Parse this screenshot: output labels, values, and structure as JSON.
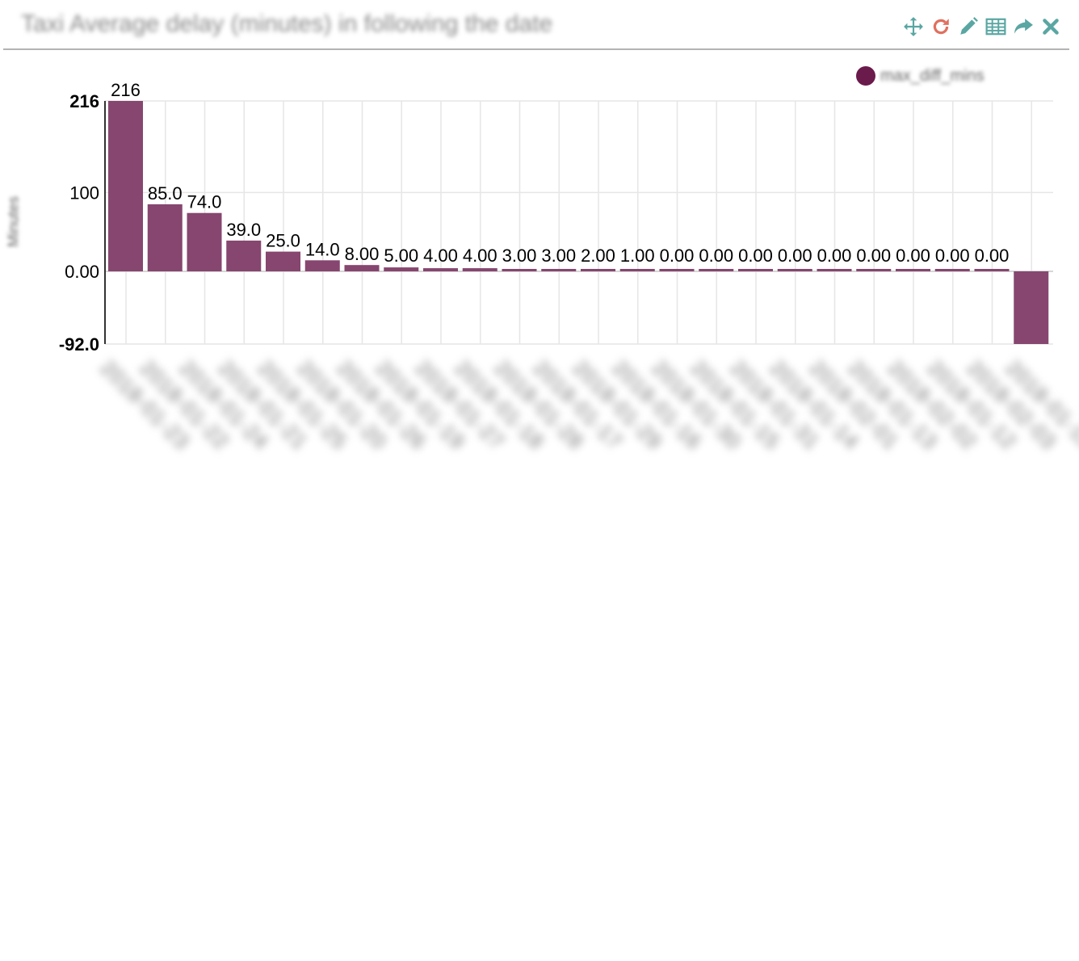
{
  "header": {
    "title": "Taxi Average delay (minutes) in following the date",
    "tools": [
      {
        "name": "move-icon",
        "color": "#5aa6a2"
      },
      {
        "name": "refresh-icon",
        "color": "#e0705f"
      },
      {
        "name": "edit-icon",
        "color": "#5aa6a2"
      },
      {
        "name": "table-icon",
        "color": "#5aa6a2"
      },
      {
        "name": "share-icon",
        "color": "#5aa6a2"
      },
      {
        "name": "close-icon",
        "color": "#5aa6a2"
      }
    ]
  },
  "colors": {
    "bar": "#86466f",
    "legend_dot": "#6b1a4c",
    "grid": "#e6e6e6",
    "axis": "#333333"
  },
  "chart_data": {
    "type": "bar",
    "title": "Taxi Average delay (minutes) in following the date",
    "ylabel": "Minutes",
    "ylim": [
      -92,
      216
    ],
    "yticks": [
      {
        "value": 216,
        "label": "216",
        "bold": true
      },
      {
        "value": 100,
        "label": "100",
        "bold": false
      },
      {
        "value": 0,
        "label": "0.00",
        "bold": false
      },
      {
        "value": -92,
        "label": "-92.0",
        "bold": true
      }
    ],
    "grid": true,
    "legend_position": "top-right",
    "categories": [
      "2018-01-23",
      "2018-01-22",
      "2018-01-24",
      "2018-01-21",
      "2018-01-25",
      "2018-01-20",
      "2018-01-26",
      "2018-01-19",
      "2018-01-27",
      "2018-01-18",
      "2018-01-28",
      "2018-01-17",
      "2018-01-29",
      "2018-01-16",
      "2018-01-30",
      "2018-01-15",
      "2018-01-31",
      "2018-01-14",
      "2018-02-01",
      "2018-01-13",
      "2018-02-02",
      "2018-01-12",
      "2018-02-03",
      "2018-01-11"
    ],
    "series": [
      {
        "name": "max_diff_mins",
        "values": [
          216,
          85.0,
          74.0,
          39.0,
          25.0,
          14.0,
          8.0,
          5.0,
          4.0,
          4.0,
          3.0,
          3.0,
          2.0,
          1.0,
          0.0,
          0.0,
          0.0,
          0.0,
          0.0,
          0.0,
          0.0,
          0.0,
          0.0,
          -92.0
        ],
        "labels": [
          "216",
          "85.0",
          "74.0",
          "39.0",
          "25.0",
          "14.0",
          "8.00",
          "5.00",
          "4.00",
          "4.00",
          "3.00",
          "3.00",
          "2.00",
          "1.00",
          "0.00",
          "0.00",
          "0.00",
          "0.00",
          "0.00",
          "0.00",
          "0.00",
          "0.00",
          "0.00",
          ""
        ]
      }
    ]
  }
}
